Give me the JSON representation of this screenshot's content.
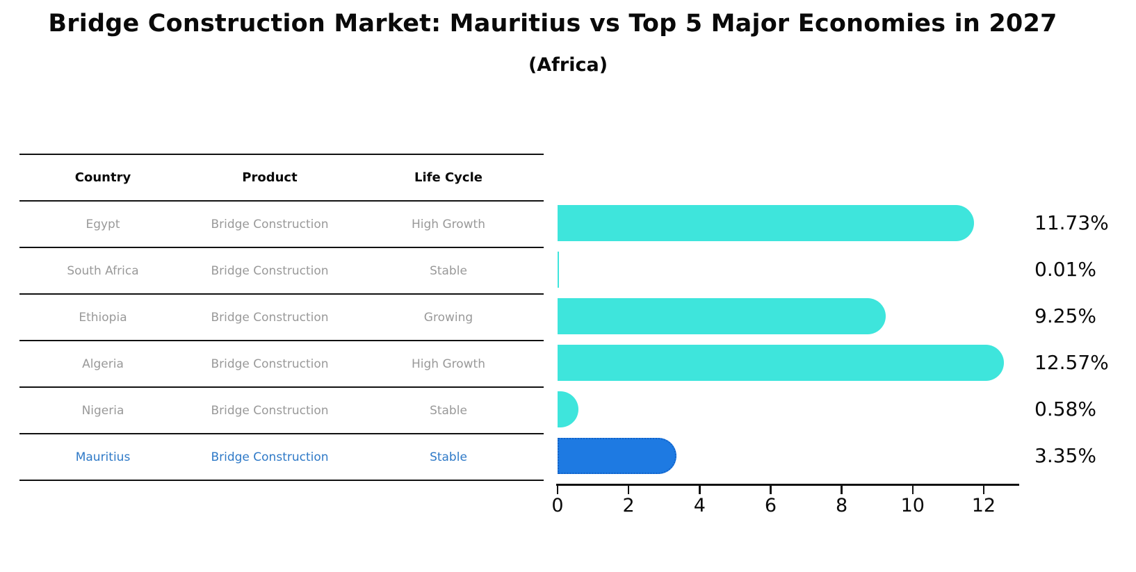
{
  "header": {
    "title": "Bridge Construction Market: Mauritius vs Top 5 Major Economies in 2027",
    "subtitle": "(Africa)"
  },
  "table": {
    "columns": [
      "Country",
      "Product",
      "Life Cycle"
    ],
    "rows": [
      {
        "country": "Egypt",
        "product": "Bridge Construction",
        "life_cycle": "High Growth",
        "highlight": false
      },
      {
        "country": "South Africa",
        "product": "Bridge Construction",
        "life_cycle": "Stable",
        "highlight": false
      },
      {
        "country": "Ethiopia",
        "product": "Bridge Construction",
        "life_cycle": "Growing",
        "highlight": false
      },
      {
        "country": "Algeria",
        "product": "Bridge Construction",
        "life_cycle": "High Growth",
        "highlight": false
      },
      {
        "country": "Nigeria",
        "product": "Bridge Construction",
        "life_cycle": "Stable",
        "highlight": false
      },
      {
        "country": "Mauritius",
        "product": "Bridge Construction",
        "life_cycle": "Stable",
        "highlight": true
      }
    ],
    "text_color": "#999999",
    "highlight_text_color": "#2e79c7"
  },
  "chart_data": {
    "type": "bar",
    "orientation": "horizontal",
    "title": "Bridge Construction Market: Mauritius vs Top 5 Major Economies in 2027",
    "subtitle": "(Africa)",
    "categories": [
      "Egypt",
      "South Africa",
      "Ethiopia",
      "Algeria",
      "Nigeria",
      "Mauritius"
    ],
    "values": [
      11.73,
      0.01,
      9.25,
      12.57,
      0.58,
      3.35
    ],
    "value_labels": [
      "11.73%",
      "0.01%",
      "9.25%",
      "12.57%",
      "0.58%",
      "3.35%"
    ],
    "xlabel": "",
    "ylabel": "",
    "xlim": [
      0,
      13
    ],
    "x_ticks": [
      0,
      2,
      4,
      6,
      8,
      10,
      12
    ],
    "grid": false,
    "legend": null,
    "bar_color": "#3ee5dc",
    "highlight_index": 5,
    "highlight_color": "#1e7ae2",
    "highlight_border_color": "#1262c8"
  }
}
